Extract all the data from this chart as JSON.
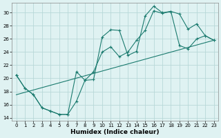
{
  "xlabel": "Humidex (Indice chaleur)",
  "bg_color": "#dff2f2",
  "line_color": "#1a7a6e",
  "grid_color": "#b8d8d8",
  "xlim": [
    -0.5,
    23.5
  ],
  "ylim": [
    13.5,
    31.5
  ],
  "xticks": [
    0,
    1,
    2,
    3,
    4,
    5,
    6,
    7,
    8,
    9,
    10,
    11,
    12,
    13,
    14,
    15,
    16,
    17,
    18,
    19,
    20,
    21,
    22,
    23
  ],
  "yticks": [
    14,
    16,
    18,
    20,
    22,
    24,
    26,
    28,
    30
  ],
  "line1_x": [
    0,
    1,
    2,
    3,
    4,
    5,
    6,
    7,
    8,
    9,
    10,
    11,
    12,
    13,
    14,
    15,
    16,
    17,
    18,
    19,
    20,
    21,
    22,
    23
  ],
  "line1_y": [
    20.5,
    18.5,
    17.5,
    15.5,
    15.0,
    14.5,
    14.5,
    21.0,
    19.7,
    19.8,
    26.3,
    27.4,
    27.3,
    23.5,
    24.1,
    29.5,
    31.0,
    30.0,
    30.2,
    29.8,
    27.5,
    28.3,
    26.5,
    25.8
  ],
  "line2_x": [
    0,
    1,
    2,
    3,
    4,
    5,
    6,
    7,
    8,
    9,
    10,
    11,
    12,
    13,
    14,
    15,
    16,
    17,
    18,
    19,
    20,
    21,
    22,
    23
  ],
  "line2_y": [
    20.5,
    18.5,
    17.5,
    15.5,
    15.0,
    14.5,
    14.5,
    16.5,
    19.7,
    21.0,
    24.0,
    24.8,
    23.3,
    24.0,
    25.8,
    27.3,
    30.3,
    29.9,
    30.2,
    25.0,
    24.5,
    26.0,
    26.5,
    25.8
  ],
  "line3_x": [
    0,
    23
  ],
  "line3_y": [
    17.5,
    25.8
  ]
}
